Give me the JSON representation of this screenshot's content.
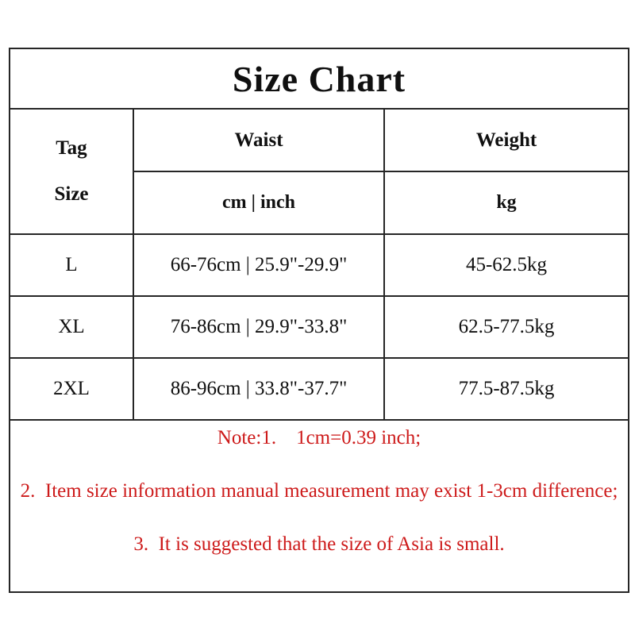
{
  "title": "Size Chart",
  "table": {
    "header": {
      "tag_label_line1": "Tag",
      "tag_label_line2": "Size",
      "waist_label": "Waist",
      "waist_unit": "cm | inch",
      "weight_label": "Weight",
      "weight_unit": "kg"
    },
    "rows": [
      {
        "size": "L",
        "waist": "66-76cm | 25.9\"-29.9\"",
        "weight": "45-62.5kg"
      },
      {
        "size": "XL",
        "waist": "76-86cm | 29.9\"-33.8\"",
        "weight": "62.5-77.5kg"
      },
      {
        "size": "2XL",
        "waist": "86-96cm | 33.8\"-37.7\"",
        "weight": "77.5-87.5kg"
      }
    ]
  },
  "notes": [
    "Note:1.    1cm=0.39 inch;",
    "2.  Item size information manual measurement may exist 1-3cm difference;",
    "3.  It is suggested that the size of Asia is small."
  ],
  "colors": {
    "note_red": "#cd1a1a",
    "table_text": "#101010",
    "border": "#262626",
    "background": "#ffffff"
  }
}
